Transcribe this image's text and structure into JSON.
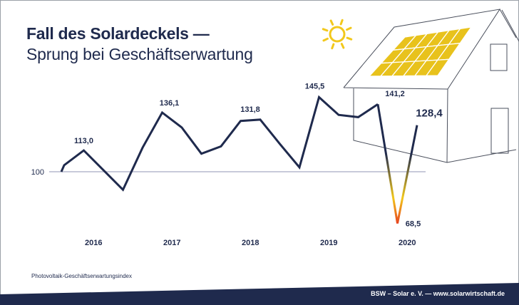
{
  "header": {
    "title": "Fall des Solardeckels —",
    "subtitle": "Sprung bei Geschäftserwartung"
  },
  "chart_data": {
    "type": "line",
    "title": "Fall des Solardeckels — Sprung bei Geschäftserwartung",
    "ylabel": "",
    "xlabel": "",
    "x_year_labels": [
      "2016",
      "2017",
      "2018",
      "2019",
      "2020"
    ],
    "reference_line": {
      "value": 100,
      "label": "100"
    },
    "series": [
      {
        "values": [
          104,
          113.0,
          101,
          89,
          114.7,
          136.1,
          127,
          111,
          115.5,
          131,
          131.8,
          117,
          102.7,
          145.5,
          134.7,
          133.3,
          141.2,
          68.5,
          128.4
        ]
      }
    ],
    "annotations": [
      {
        "index": 1,
        "label": "113,0"
      },
      {
        "index": 5,
        "label": "136,1"
      },
      {
        "index": 10,
        "label": "131,8"
      },
      {
        "index": 13,
        "label": "145,5"
      },
      {
        "index": 16,
        "label": "141,2"
      },
      {
        "index": 17,
        "label": "68,5"
      },
      {
        "index": 18,
        "label": "128,4"
      }
    ],
    "grid": false,
    "colors": {
      "line": "#1f2a4d",
      "drop_gradient": [
        "#1f2a4d",
        "#f2c81c",
        "#e63a1e"
      ],
      "reference": "#a6abc4"
    }
  },
  "illustration": {
    "sun_color": "#f2c81c",
    "panel_color": "#e8c21c",
    "house_outline": "#4a4f5c"
  },
  "footer": {
    "source_label": "Photovoltaik-Geschäftserwartungsindex",
    "credit": "BSW – Solar e. V. — www.solarwirtschaft.de",
    "band_color": "#1f2a4d"
  }
}
